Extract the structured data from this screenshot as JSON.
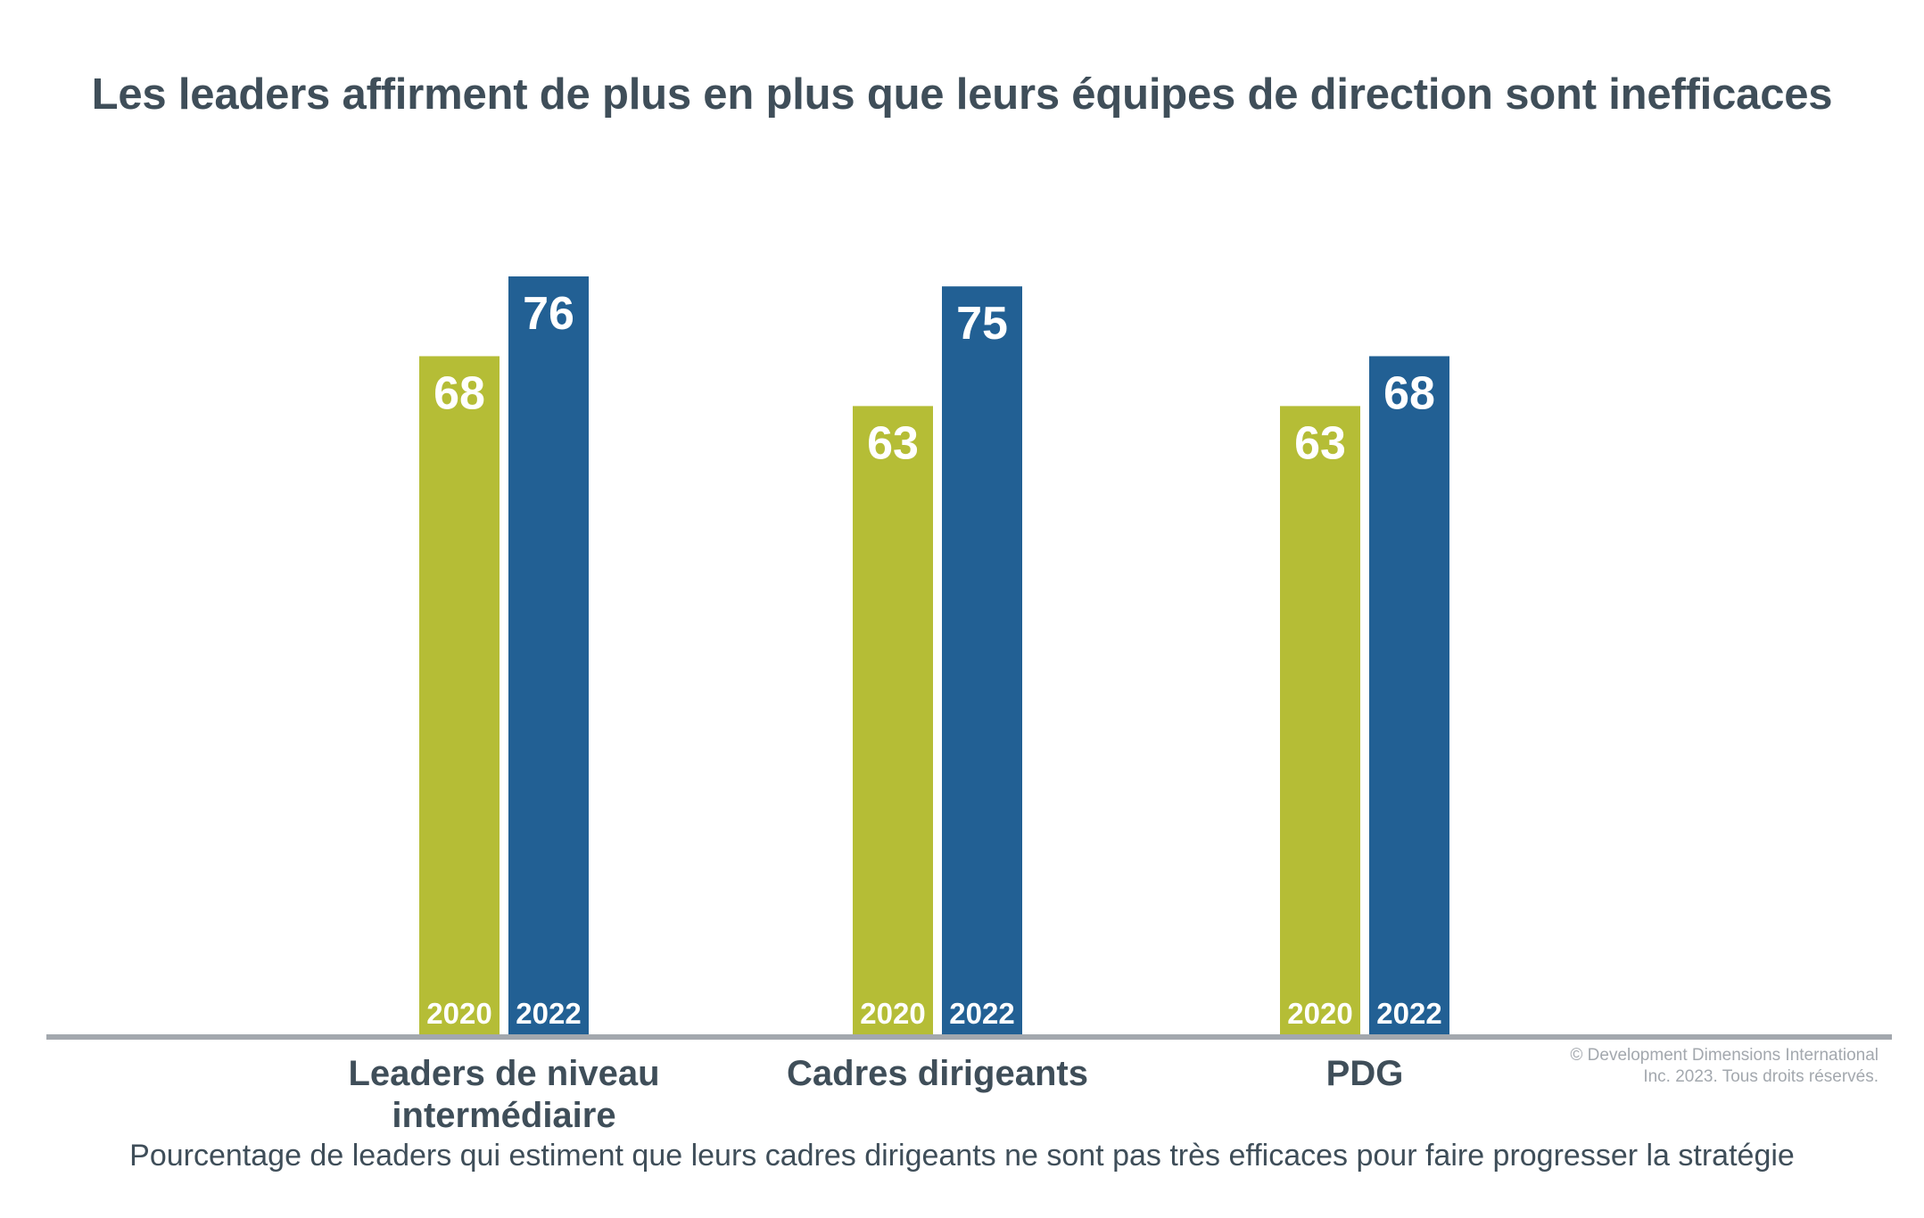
{
  "chart_data": {
    "type": "bar",
    "title": "Les leaders affirment de plus en plus que leurs équipes de direction sont inefficaces",
    "subtitle": "Pourcentage de leaders qui estiment que leurs cadres dirigeants ne sont pas très efficaces pour faire progresser la stratégie",
    "categories": [
      {
        "lines": [
          "Leaders de niveau",
          "intermédiaire"
        ]
      },
      {
        "lines": [
          "Cadres dirigeants"
        ]
      },
      {
        "lines": [
          "PDG"
        ]
      }
    ],
    "series": [
      {
        "name": "2020",
        "color": "#b5bd36",
        "values": [
          68,
          63,
          63
        ]
      },
      {
        "name": "2022",
        "color": "#226094",
        "values": [
          76,
          75,
          68
        ]
      }
    ],
    "ylim": [
      0,
      76
    ],
    "grid": false,
    "legend": "none",
    "axis_color": "#a3a8ae",
    "label_color": "#ffffff"
  },
  "copyright": {
    "lines": [
      "© Development Dimensions International",
      "Inc. 2023. Tous droits réservés."
    ]
  }
}
